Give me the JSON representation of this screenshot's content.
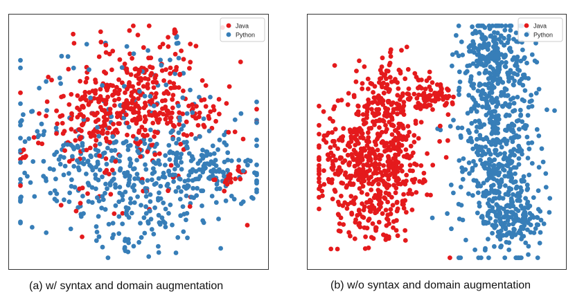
{
  "figure": {
    "colors": {
      "java": "#e41a1c",
      "python": "#377eb8",
      "frame": "#333333"
    },
    "panels": [
      {
        "id": "a",
        "caption": "(a) w/ syntax and domain augmentation",
        "legend": [
          "Java",
          "Python"
        ]
      },
      {
        "id": "b",
        "caption": "(b) w/o syntax and domain augmentation",
        "legend": [
          "Java",
          "Python"
        ]
      }
    ]
  },
  "chart_data": [
    {
      "type": "scatter",
      "title": "",
      "xlabel": "",
      "ylabel": "",
      "axes_visible": false,
      "grid": false,
      "legend_position": "top-right",
      "xlim": [
        0,
        100
      ],
      "ylim": [
        0,
        100
      ],
      "series": [
        {
          "name": "Java",
          "color": "#e41a1c",
          "clusters": [
            {
              "center": [
                46,
                66
              ],
              "spread": [
                13,
                10
              ],
              "count": 220
            },
            {
              "center": [
                24,
                56
              ],
              "spread": [
                7,
                5
              ],
              "count": 40
            },
            {
              "center": [
                74,
                62
              ],
              "spread": [
                6,
                6
              ],
              "count": 30
            },
            {
              "center": [
                50,
                73
              ],
              "spread": [
                18,
                13
              ],
              "count": 120
            },
            {
              "center": [
                88,
                35
              ],
              "spread": [
                3,
                2.5
              ],
              "count": 18
            },
            {
              "center": [
                2,
                43
              ],
              "spread": [
                1.5,
                2
              ],
              "count": 6
            },
            {
              "center": [
                50,
                40
              ],
              "spread": [
                25,
                12
              ],
              "count": 60
            },
            {
              "center": [
                66,
                96
              ],
              "spread": [
                1,
                1
              ],
              "count": 4
            }
          ]
        },
        {
          "name": "Python",
          "color": "#377eb8",
          "clusters": [
            {
              "center": [
                50,
                35
              ],
              "spread": [
                25,
                10
              ],
              "count": 260
            },
            {
              "center": [
                77,
                37
              ],
              "spread": [
                10,
                7
              ],
              "count": 80
            },
            {
              "center": [
                25,
                47
              ],
              "spread": [
                9,
                5
              ],
              "count": 40
            },
            {
              "center": [
                48,
                62
              ],
              "spread": [
                24,
                17
              ],
              "count": 120
            },
            {
              "center": [
                48,
                16
              ],
              "spread": [
                16,
                8
              ],
              "count": 60
            },
            {
              "center": [
                45,
                6
              ],
              "spread": [
                1.5,
                2
              ],
              "count": 6
            },
            {
              "center": [
                66,
                94
              ],
              "spread": [
                1,
                1.5
              ],
              "count": 4
            }
          ]
        }
      ]
    },
    {
      "type": "scatter",
      "title": "",
      "xlabel": "",
      "ylabel": "",
      "axes_visible": false,
      "grid": false,
      "legend_position": "top-right",
      "xlim": [
        0,
        100
      ],
      "ylim": [
        0,
        100
      ],
      "series": [
        {
          "name": "Java",
          "color": "#e41a1c",
          "clusters": [
            {
              "center": [
                23,
                42
              ],
              "spread": [
                12,
                13
              ],
              "count": 520
            },
            {
              "center": [
                31,
                70
              ],
              "spread": [
                7,
                9
              ],
              "count": 120
            },
            {
              "center": [
                48,
                69
              ],
              "spread": [
                5,
                3
              ],
              "count": 70
            },
            {
              "center": [
                23,
                17
              ],
              "spread": [
                7,
                6
              ],
              "count": 60
            }
          ]
        },
        {
          "name": "Python",
          "color": "#377eb8",
          "clusters": [
            {
              "center": [
                75,
                52
              ],
              "spread": [
                8,
                24
              ],
              "count": 560
            },
            {
              "center": [
                72,
                87
              ],
              "spread": [
                6,
                7
              ],
              "count": 140
            },
            {
              "center": [
                82,
                18
              ],
              "spread": [
                6,
                7
              ],
              "count": 130
            },
            {
              "center": [
                57,
                87
              ],
              "spread": [
                0.8,
                0.8
              ],
              "count": 2
            }
          ]
        }
      ]
    }
  ]
}
